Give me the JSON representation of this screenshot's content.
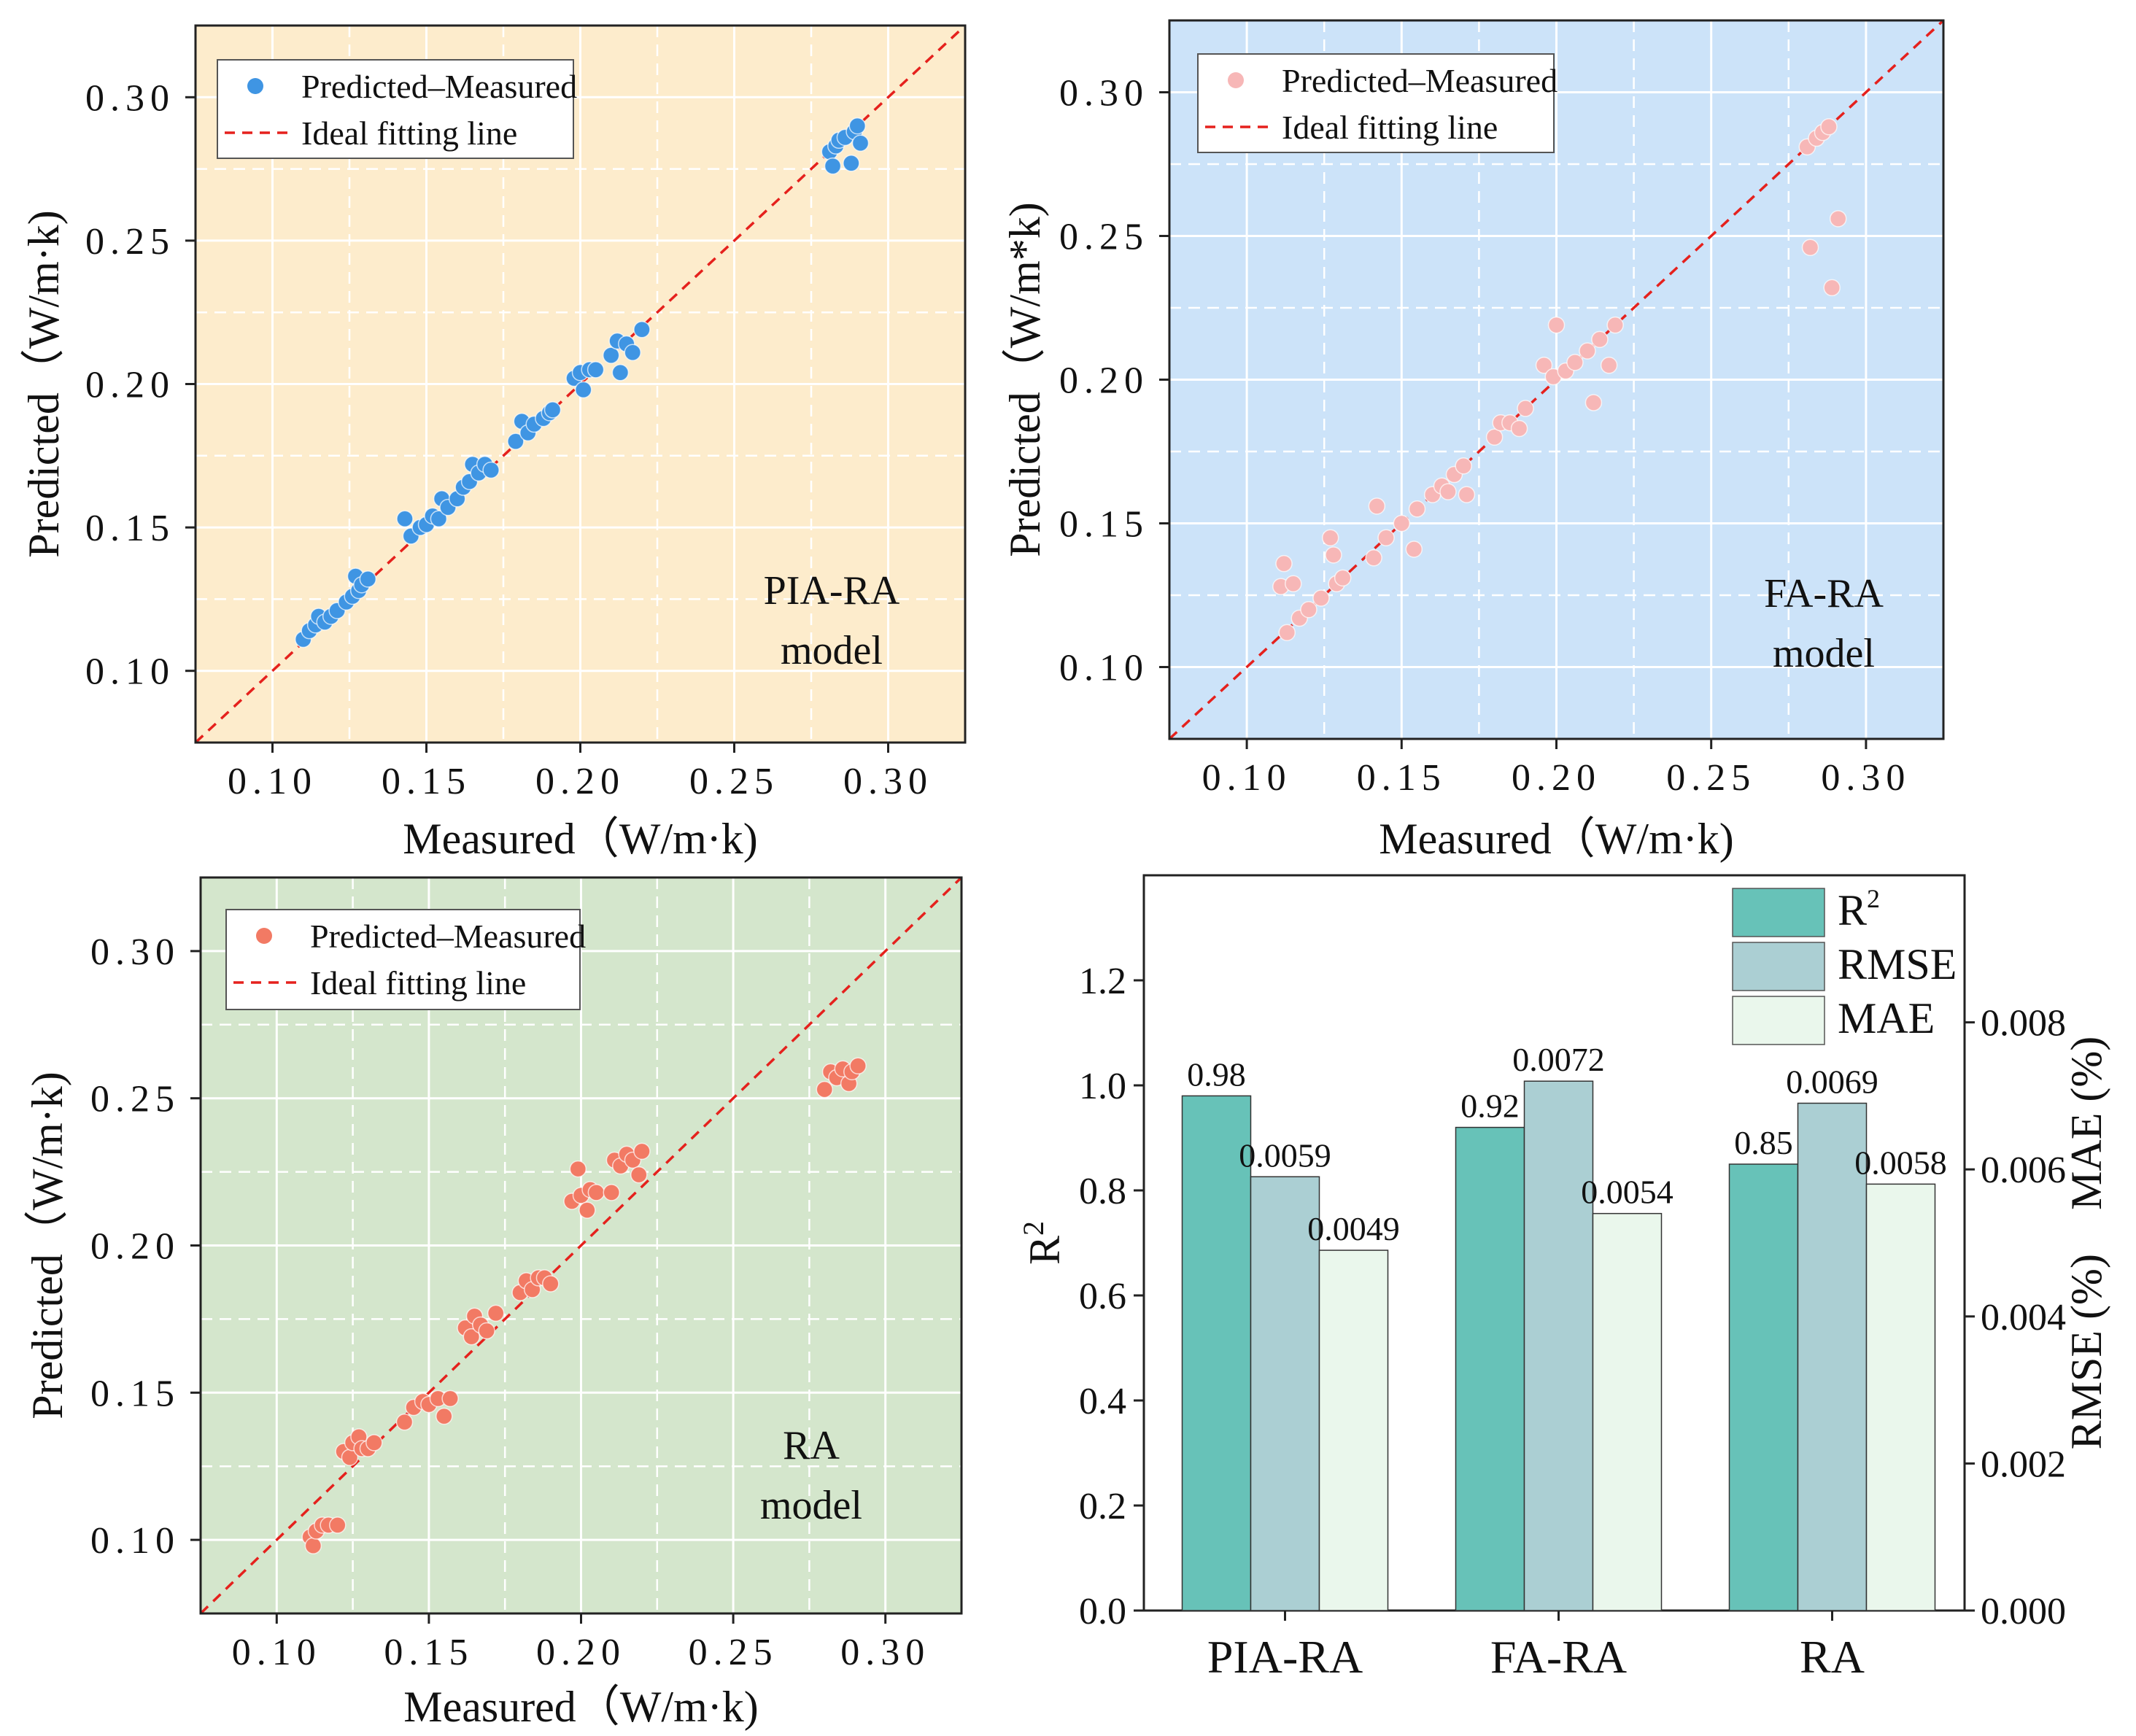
{
  "chart_data": [
    {
      "id": "pia",
      "type": "scatter",
      "model_label": [
        "PIA-RA",
        "model"
      ],
      "xlabel": "Measured（W/m·k)",
      "ylabel": "Predicted（W/m·k)",
      "xlim": [
        0.075,
        0.325
      ],
      "ylim": [
        0.075,
        0.325
      ],
      "xticks": [
        "0.10",
        "0.15",
        "0.20",
        "0.25",
        "0.30"
      ],
      "yticks": [
        "0.10",
        "0.15",
        "0.20",
        "0.25",
        "0.30"
      ],
      "background": "#fdeccc",
      "point_color": "#3f95e3",
      "legend": {
        "scatter": "Predicted–Measured",
        "line": "Ideal fitting line",
        "position": "top-left"
      },
      "series": [
        {
          "name": "Predicted–Measured",
          "points": [
            [
              0.11,
              0.111
            ],
            [
              0.112,
              0.114
            ],
            [
              0.114,
              0.116
            ],
            [
              0.115,
              0.119
            ],
            [
              0.117,
              0.117
            ],
            [
              0.119,
              0.119
            ],
            [
              0.121,
              0.121
            ],
            [
              0.124,
              0.124
            ],
            [
              0.126,
              0.126
            ],
            [
              0.128,
              0.128
            ],
            [
              0.127,
              0.133
            ],
            [
              0.129,
              0.13
            ],
            [
              0.131,
              0.132
            ],
            [
              0.143,
              0.153
            ],
            [
              0.145,
              0.147
            ],
            [
              0.148,
              0.15
            ],
            [
              0.15,
              0.151
            ],
            [
              0.152,
              0.154
            ],
            [
              0.154,
              0.153
            ],
            [
              0.155,
              0.16
            ],
            [
              0.157,
              0.157
            ],
            [
              0.16,
              0.16
            ],
            [
              0.162,
              0.164
            ],
            [
              0.164,
              0.166
            ],
            [
              0.165,
              0.172
            ],
            [
              0.167,
              0.169
            ],
            [
              0.169,
              0.172
            ],
            [
              0.171,
              0.17
            ],
            [
              0.179,
              0.18
            ],
            [
              0.181,
              0.187
            ],
            [
              0.183,
              0.183
            ],
            [
              0.185,
              0.186
            ],
            [
              0.188,
              0.188
            ],
            [
              0.19,
              0.19
            ],
            [
              0.191,
              0.191
            ],
            [
              0.198,
              0.202
            ],
            [
              0.2,
              0.204
            ],
            [
              0.201,
              0.198
            ],
            [
              0.203,
              0.205
            ],
            [
              0.205,
              0.205
            ],
            [
              0.21,
              0.21
            ],
            [
              0.212,
              0.215
            ],
            [
              0.213,
              0.204
            ],
            [
              0.215,
              0.214
            ],
            [
              0.217,
              0.211
            ],
            [
              0.22,
              0.219
            ],
            [
              0.281,
              0.281
            ],
            [
              0.282,
              0.276
            ],
            [
              0.283,
              0.283
            ],
            [
              0.284,
              0.285
            ],
            [
              0.286,
              0.286
            ],
            [
              0.288,
              0.277
            ],
            [
              0.289,
              0.288
            ],
            [
              0.29,
              0.29
            ],
            [
              0.291,
              0.284
            ]
          ]
        }
      ]
    },
    {
      "id": "fa",
      "type": "scatter",
      "model_label": [
        "FA-RA",
        "model"
      ],
      "xlabel": "Measured（W/m·k)",
      "ylabel": "Predicted（W/m*k)",
      "xlim": [
        0.075,
        0.325
      ],
      "ylim": [
        0.075,
        0.325
      ],
      "xticks": [
        "0.10",
        "0.15",
        "0.20",
        "0.25",
        "0.30"
      ],
      "yticks": [
        "0.10",
        "0.15",
        "0.20",
        "0.25",
        "0.30"
      ],
      "background": "#cce3f9",
      "point_color": "#f7b7b7",
      "legend": {
        "scatter": "Predicted–Measured",
        "line": "Ideal fitting line",
        "position": "top-left"
      },
      "series": [
        {
          "name": "Predicted–Measured",
          "points": [
            [
              0.111,
              0.128
            ],
            [
              0.112,
              0.136
            ],
            [
              0.113,
              0.112
            ],
            [
              0.115,
              0.129
            ],
            [
              0.117,
              0.117
            ],
            [
              0.12,
              0.12
            ],
            [
              0.124,
              0.124
            ],
            [
              0.127,
              0.145
            ],
            [
              0.128,
              0.139
            ],
            [
              0.129,
              0.129
            ],
            [
              0.131,
              0.131
            ],
            [
              0.141,
              0.138
            ],
            [
              0.142,
              0.156
            ],
            [
              0.145,
              0.145
            ],
            [
              0.15,
              0.15
            ],
            [
              0.154,
              0.141
            ],
            [
              0.155,
              0.155
            ],
            [
              0.16,
              0.16
            ],
            [
              0.163,
              0.163
            ],
            [
              0.165,
              0.161
            ],
            [
              0.167,
              0.167
            ],
            [
              0.17,
              0.17
            ],
            [
              0.171,
              0.16
            ],
            [
              0.18,
              0.18
            ],
            [
              0.182,
              0.185
            ],
            [
              0.185,
              0.185
            ],
            [
              0.188,
              0.183
            ],
            [
              0.19,
              0.19
            ],
            [
              0.196,
              0.205
            ],
            [
              0.199,
              0.201
            ],
            [
              0.2,
              0.219
            ],
            [
              0.203,
              0.203
            ],
            [
              0.206,
              0.206
            ],
            [
              0.21,
              0.21
            ],
            [
              0.212,
              0.192
            ],
            [
              0.214,
              0.214
            ],
            [
              0.217,
              0.205
            ],
            [
              0.219,
              0.219
            ],
            [
              0.281,
              0.281
            ],
            [
              0.282,
              0.246
            ],
            [
              0.284,
              0.284
            ],
            [
              0.286,
              0.286
            ],
            [
              0.288,
              0.288
            ],
            [
              0.289,
              0.232
            ],
            [
              0.291,
              0.256
            ]
          ]
        }
      ]
    },
    {
      "id": "ra",
      "type": "scatter",
      "model_label": [
        "RA",
        "model"
      ],
      "xlabel": "Measured（W/m·k)",
      "ylabel": "Predicted（W/m·k)",
      "xlim": [
        0.075,
        0.325
      ],
      "ylim": [
        0.075,
        0.325
      ],
      "xticks": [
        "0.10",
        "0.15",
        "0.20",
        "0.25",
        "0.30"
      ],
      "yticks": [
        "0.10",
        "0.15",
        "0.20",
        "0.25",
        "0.30"
      ],
      "background": "#d4e6cc",
      "point_color": "#f27a64",
      "legend": {
        "scatter": "Predicted–Measured",
        "line": "Ideal fitting line",
        "position": "top-left"
      },
      "series": [
        {
          "name": "Predicted–Measured",
          "points": [
            [
              0.111,
              0.101
            ],
            [
              0.112,
              0.098
            ],
            [
              0.113,
              0.103
            ],
            [
              0.115,
              0.105
            ],
            [
              0.117,
              0.105
            ],
            [
              0.12,
              0.105
            ],
            [
              0.122,
              0.13
            ],
            [
              0.124,
              0.128
            ],
            [
              0.125,
              0.133
            ],
            [
              0.127,
              0.135
            ],
            [
              0.128,
              0.131
            ],
            [
              0.13,
              0.131
            ],
            [
              0.132,
              0.133
            ],
            [
              0.142,
              0.14
            ],
            [
              0.145,
              0.145
            ],
            [
              0.148,
              0.147
            ],
            [
              0.15,
              0.146
            ],
            [
              0.153,
              0.148
            ],
            [
              0.155,
              0.142
            ],
            [
              0.157,
              0.148
            ],
            [
              0.162,
              0.172
            ],
            [
              0.164,
              0.169
            ],
            [
              0.165,
              0.176
            ],
            [
              0.167,
              0.173
            ],
            [
              0.169,
              0.171
            ],
            [
              0.172,
              0.177
            ],
            [
              0.18,
              0.184
            ],
            [
              0.182,
              0.188
            ],
            [
              0.184,
              0.185
            ],
            [
              0.186,
              0.189
            ],
            [
              0.188,
              0.189
            ],
            [
              0.19,
              0.187
            ],
            [
              0.197,
              0.215
            ],
            [
              0.199,
              0.226
            ],
            [
              0.2,
              0.217
            ],
            [
              0.202,
              0.212
            ],
            [
              0.203,
              0.219
            ],
            [
              0.205,
              0.218
            ],
            [
              0.21,
              0.218
            ],
            [
              0.211,
              0.229
            ],
            [
              0.213,
              0.227
            ],
            [
              0.215,
              0.231
            ],
            [
              0.217,
              0.229
            ],
            [
              0.219,
              0.224
            ],
            [
              0.22,
              0.232
            ],
            [
              0.28,
              0.253
            ],
            [
              0.282,
              0.259
            ],
            [
              0.284,
              0.257
            ],
            [
              0.286,
              0.26
            ],
            [
              0.288,
              0.255
            ],
            [
              0.289,
              0.259
            ],
            [
              0.291,
              0.261
            ]
          ]
        }
      ]
    },
    {
      "id": "bars",
      "type": "bar",
      "categories": [
        "PIA-RA",
        "FA-RA",
        "RA"
      ],
      "ylabel_left": "R",
      "ylabel_left_sup": "2",
      "ylabel_right": "RMSE (%)    MAE (%)",
      "ylim_left": [
        0,
        1.4
      ],
      "ylim_right": [
        0,
        0.01
      ],
      "yticks_left": [
        "0.0",
        "0.2",
        "0.4",
        "0.6",
        "0.8",
        "1.0",
        "1.2"
      ],
      "yticks_right": [
        "0.000",
        "0.002",
        "0.004",
        "0.006",
        "0.008"
      ],
      "legend_position": "top-right",
      "series": [
        {
          "name": "R",
          "sup": "2",
          "axis": "left",
          "color": "#67c2b8",
          "values": [
            0.98,
            0.92,
            0.85
          ],
          "labels": [
            "0.98",
            "0.92",
            "0.85"
          ]
        },
        {
          "name": "RMSE",
          "sup": "",
          "axis": "right",
          "color": "#abcfd3",
          "values": [
            0.0059,
            0.0072,
            0.0069
          ],
          "labels": [
            "0.0059",
            "0.0072",
            "0.0069"
          ]
        },
        {
          "name": "MAE",
          "sup": "",
          "axis": "right",
          "color": "#eaf7ec",
          "values": [
            0.0049,
            0.0054,
            0.0058
          ],
          "labels": [
            "0.0049",
            "0.0054",
            "0.0058"
          ]
        }
      ]
    }
  ]
}
